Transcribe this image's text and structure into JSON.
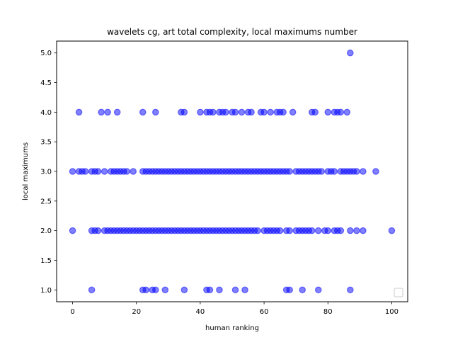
{
  "chart_data": {
    "type": "scatter",
    "title": "wavelets cg, art total complexity, local maximums number",
    "xlabel": "human ranking",
    "ylabel": "local maximums",
    "xlim": [
      -5,
      105
    ],
    "ylim": [
      0.8,
      5.2
    ],
    "x_ticks": [
      "0",
      "20",
      "40",
      "60",
      "80",
      "100"
    ],
    "y_ticks": [
      "1.0",
      "1.5",
      "2.0",
      "2.5",
      "3.0",
      "3.5",
      "4.0",
      "4.5",
      "5.0"
    ],
    "grid": false,
    "legend": "lower-right (empty)",
    "marker_color": "#0000ff",
    "marker_alpha": 0.5,
    "series": [
      {
        "points_by_level": {
          "5": [
            87
          ],
          "4": [
            2,
            9,
            11,
            14,
            22,
            26,
            34,
            35,
            40,
            42,
            43,
            44,
            46,
            47,
            48,
            50,
            51,
            53,
            55,
            56,
            59,
            60,
            62,
            64,
            65,
            66,
            69,
            75,
            76,
            80,
            82,
            83,
            84,
            86
          ],
          "3": [
            0,
            2,
            3,
            4,
            6,
            7,
            8,
            10,
            12,
            13,
            14,
            15,
            16,
            17,
            19,
            22,
            23,
            24,
            25,
            26,
            27,
            28,
            29,
            30,
            31,
            32,
            33,
            34,
            35,
            36,
            37,
            38,
            39,
            40,
            41,
            42,
            43,
            44,
            45,
            46,
            47,
            48,
            49,
            50,
            51,
            52,
            53,
            54,
            55,
            56,
            57,
            58,
            59,
            60,
            61,
            62,
            63,
            64,
            65,
            66,
            67,
            68,
            70,
            71,
            72,
            73,
            74,
            75,
            76,
            77,
            78,
            80,
            81,
            82,
            84,
            85,
            86,
            87,
            88,
            89,
            91,
            95
          ],
          "2": [
            0,
            6,
            7,
            8,
            10,
            11,
            12,
            13,
            14,
            15,
            16,
            17,
            18,
            19,
            20,
            21,
            22,
            23,
            24,
            25,
            26,
            27,
            28,
            29,
            30,
            31,
            32,
            33,
            34,
            35,
            36,
            37,
            38,
            39,
            40,
            41,
            42,
            43,
            44,
            45,
            46,
            47,
            48,
            49,
            50,
            51,
            52,
            53,
            54,
            55,
            56,
            57,
            58,
            60,
            61,
            62,
            63,
            64,
            65,
            67,
            68,
            70,
            71,
            72,
            73,
            74,
            75,
            77,
            79,
            80,
            82,
            83,
            84,
            87,
            89,
            91,
            100
          ],
          "1": [
            6,
            22,
            23,
            25,
            26,
            29,
            35,
            42,
            43,
            46,
            51,
            54,
            67,
            68,
            72,
            77,
            87
          ]
        }
      }
    ]
  }
}
